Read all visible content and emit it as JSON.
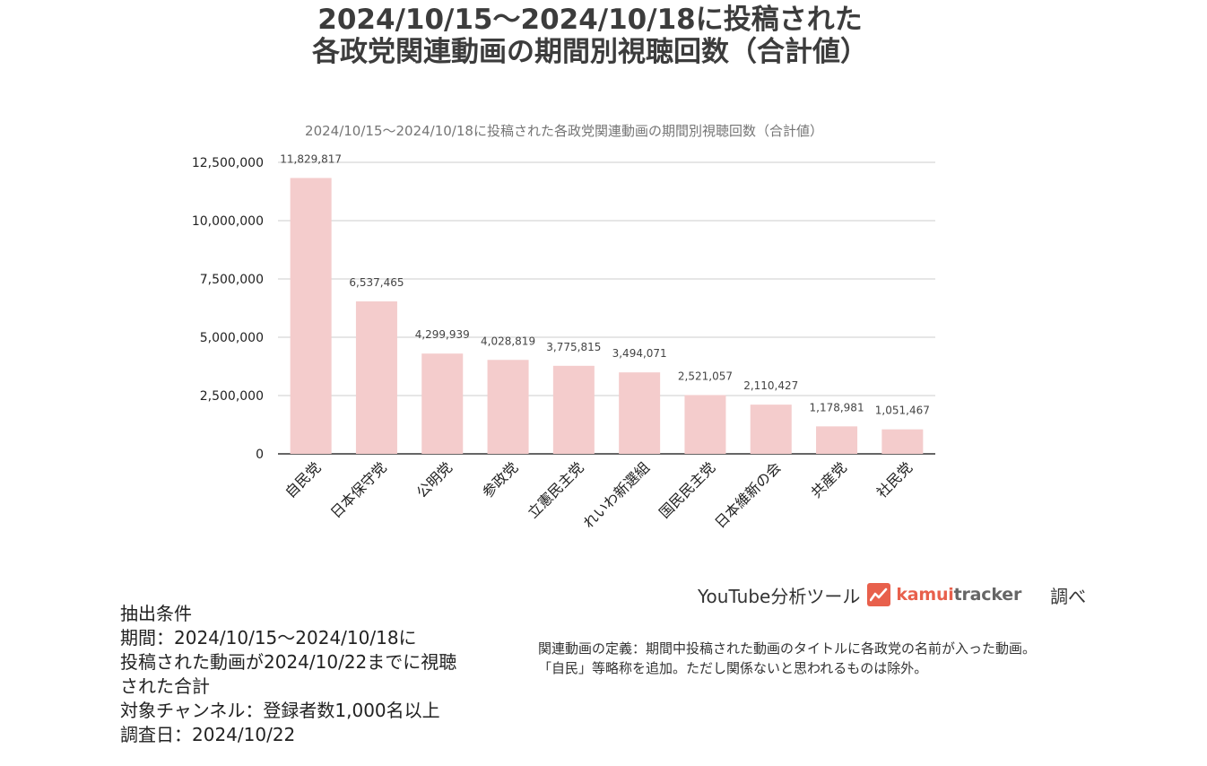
{
  "header": {
    "title_line1": "2024/10/15～2024/10/18に投稿された",
    "title_line2": "各政党関連動画の期間別視聴回数（合計値）"
  },
  "chart_data": {
    "type": "bar",
    "title": "2024/10/15～2024/10/18に投稿された各政党関連動画の期間別視聴回数（合計値）",
    "categories": [
      "自民党",
      "日本保守党",
      "公明党",
      "参政党",
      "立憲民主党",
      "れいわ新選組",
      "国民民主党",
      "日本維新の会",
      "共産党",
      "社民党"
    ],
    "values": [
      11829817,
      6537465,
      4299939,
      4028819,
      3775815,
      3494071,
      2521057,
      2110427,
      1178981,
      1051467
    ],
    "value_labels": [
      "11,829,817",
      "6,537,465",
      "4,299,939",
      "4,028,819",
      "3,775,815",
      "3,494,071",
      "2,521,057",
      "2,110,427",
      "1,178,981",
      "1,051,467"
    ],
    "ylim": [
      0,
      12500000
    ],
    "yticks": [
      0,
      2500000,
      5000000,
      7500000,
      10000000,
      12500000
    ],
    "ytick_labels": [
      "0",
      "2,500,000",
      "5,000,000",
      "7,500,000",
      "10,000,000",
      "12,500,000"
    ],
    "xlabel": "",
    "ylabel": "",
    "grid": true,
    "bar_color": "#f4cccc"
  },
  "credit": {
    "tool_label": "YouTube分析ツール",
    "brand_part1": "kamui",
    "brand_part2": "tracker",
    "by_label": "調べ",
    "icon": "trend-chart-icon",
    "brand_color": "#e8604c"
  },
  "conditions": {
    "heading": "抽出条件",
    "period_line1": "期間：2024/10/15～2024/10/18に",
    "period_line2": "投稿された動画が2024/10/22までに視聴",
    "period_line3": "された合計",
    "channel": "対象チャンネル：登録者数1,000名以上",
    "survey_date": "調査日：2024/10/22"
  },
  "definition": {
    "line1": "関連動画の定義：期間中投稿された動画のタイトルに各政党の名前が入った動画。",
    "line2": "「自民」等略称を追加。ただし関係ないと思われるものは除外。"
  }
}
